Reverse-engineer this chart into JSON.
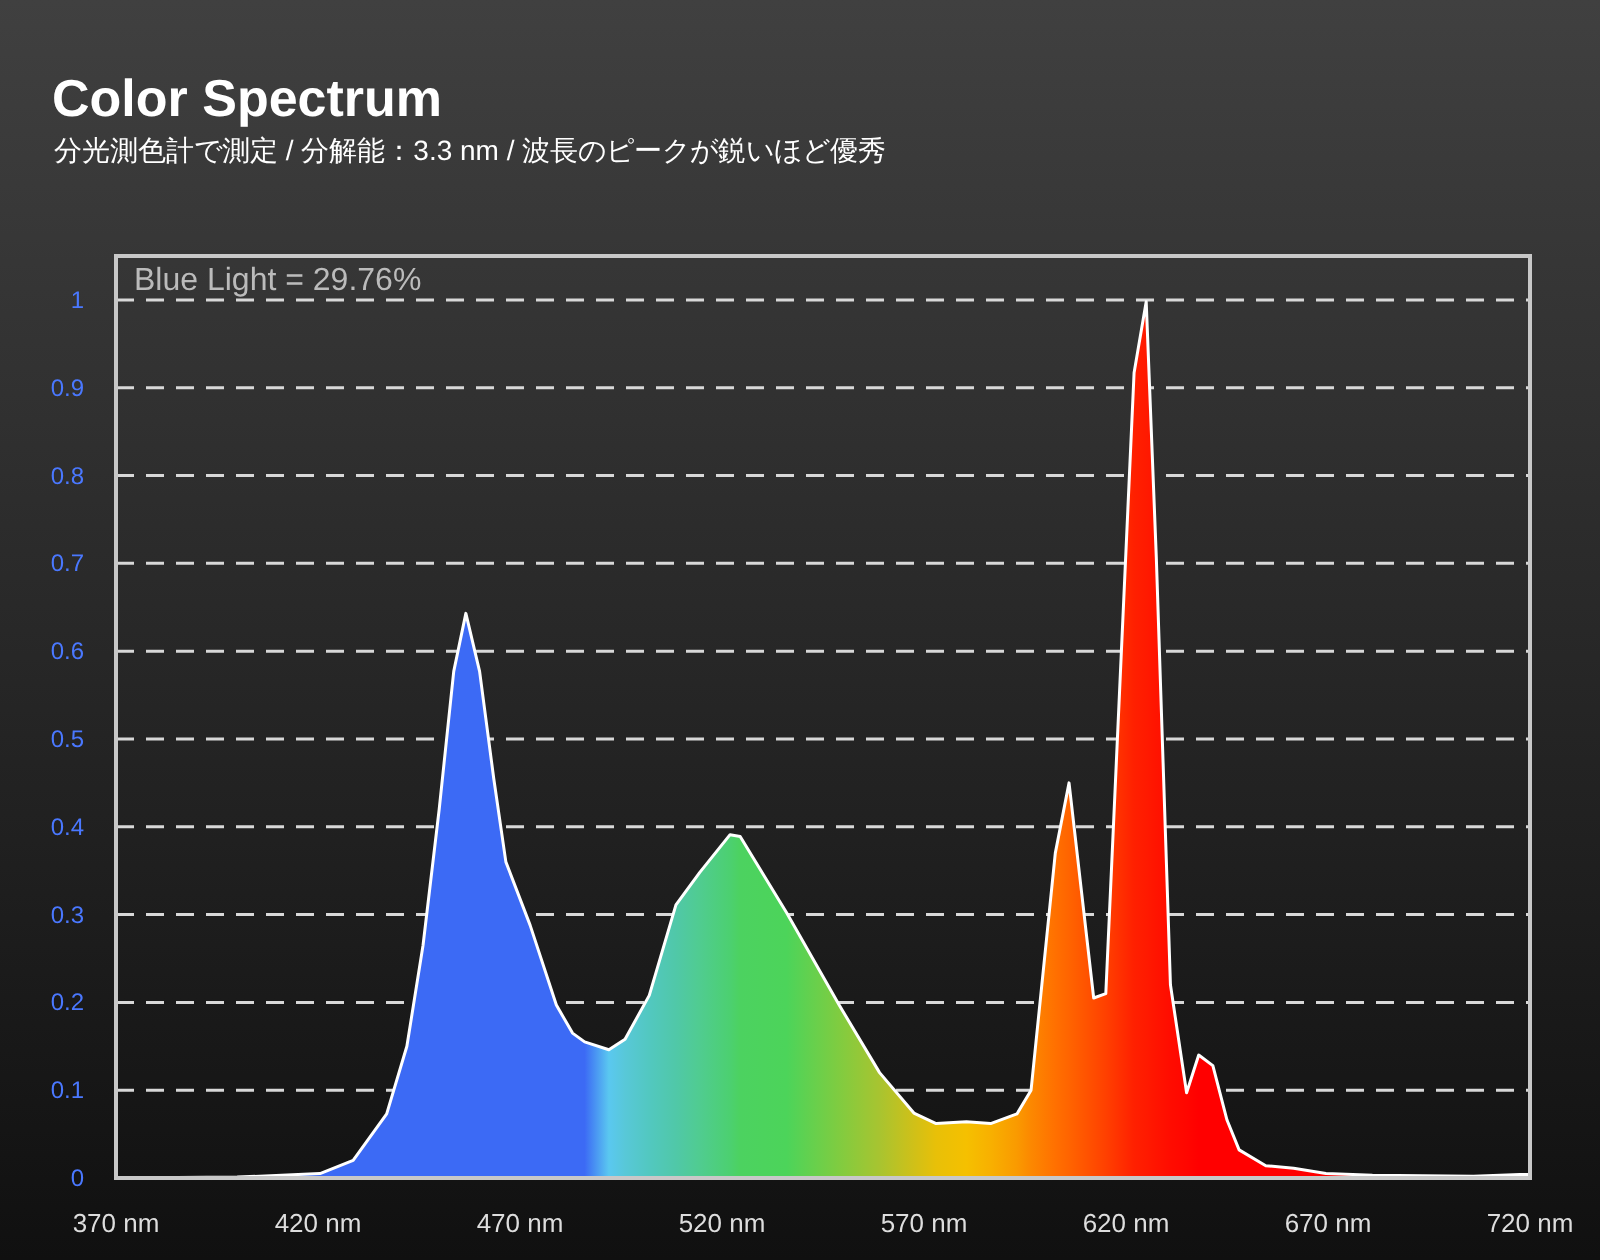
{
  "chart_data": {
    "type": "area",
    "title": "Color Spectrum",
    "subtitle": "分光測色計で測定 / 分解能：3.3 nm / 波長のピークが鋭いほど優秀",
    "annotations": [
      "Blue Light = 29.76%"
    ],
    "x": [
      370,
      400,
      420.5,
      428.7,
      437,
      442,
      446,
      450,
      453.6,
      456.6,
      460,
      463.5,
      466.5,
      472.5,
      479,
      483,
      486,
      492,
      496,
      502,
      508.6,
      514.5,
      522,
      524.5,
      536,
      549,
      559,
      567.5,
      573,
      580.5,
      586.5,
      593,
      596.5,
      602.5,
      605.9,
      612,
      615,
      622,
      625,
      627.5,
      631,
      635,
      638,
      641.5,
      645,
      648,
      654.6,
      661.5,
      669.5,
      681,
      706,
      717.5,
      720
    ],
    "series": [
      {
        "values": [
          0,
          0.001,
          0.005,
          0.02,
          0.073,
          0.15,
          0.265,
          0.42,
          0.577,
          0.643,
          0.577,
          0.455,
          0.36,
          0.288,
          0.197,
          0.165,
          0.155,
          0.146,
          0.158,
          0.208,
          0.311,
          0.348,
          0.391,
          0.389,
          0.302,
          0.197,
          0.12,
          0.074,
          0.062,
          0.064,
          0.062,
          0.073,
          0.1,
          0.37,
          0.45,
          0.205,
          0.21,
          0.917,
          0.998,
          0.707,
          0.22,
          0.097,
          0.14,
          0.128,
          0.066,
          0.032,
          0.014,
          0.011,
          0.005,
          0.003,
          0.002,
          0.004,
          0.004
        ]
      }
    ],
    "colors": [
      "#3c6af5",
      "#3c6af5",
      "#3c6af5",
      "#3c6af5",
      "#3c6af5",
      "#3c6af5",
      "#3c6af5",
      "#3c6af5",
      "#3c6af5",
      "#3c6af5",
      "#3c6af5",
      "#3c6af5",
      "#3c6af5",
      "#3c6af5",
      "#3c6af5",
      "#3c6af5",
      "#3c6af5",
      "#5ac8f0",
      "#58c8d8",
      "#52c8c0",
      "#50c8a8",
      "#50cc90",
      "#4cd070",
      "#4cd260",
      "#4cd45a",
      "#80cc40",
      "#a8c430",
      "#d0c018",
      "#e8c008",
      "#f5c000",
      "#f8b000",
      "#fa9a00",
      "#fc8800",
      "#ff7000",
      "#ff6400",
      "#ff4c00",
      "#ff4000",
      "#ff2000",
      "#ff1a00",
      "#ff1400",
      "#ff0c00",
      "#ff0600",
      "#ff0000",
      "#ff0000",
      "#ff0000",
      "#ff0000",
      "#ff0000",
      "#ff0000",
      "#ff0000",
      "#ff0000",
      "#ff0000",
      "#ff0000",
      "#ff0000"
    ],
    "xlim": [
      370,
      720
    ],
    "ylim": [
      0,
      1.05
    ],
    "xticks": [
      {
        "value": 370,
        "label": "370 nm"
      },
      {
        "value": 420,
        "label": "420 nm"
      },
      {
        "value": 470,
        "label": "470 nm"
      },
      {
        "value": 520,
        "label": "520 nm"
      },
      {
        "value": 570,
        "label": "570 nm"
      },
      {
        "value": 620,
        "label": "620 nm"
      },
      {
        "value": 670,
        "label": "670 nm"
      },
      {
        "value": 720,
        "label": "720 nm"
      }
    ],
    "yticks": [
      0,
      0.1,
      0.2,
      0.3,
      0.4,
      0.5,
      0.6,
      0.7,
      0.8,
      0.9,
      1
    ],
    "grid": "y",
    "line_style": "solid"
  }
}
